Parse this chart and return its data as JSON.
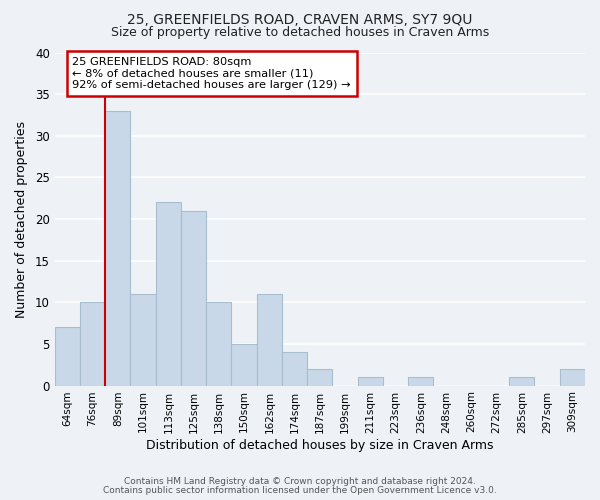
{
  "title1": "25, GREENFIELDS ROAD, CRAVEN ARMS, SY7 9QU",
  "title2": "Size of property relative to detached houses in Craven Arms",
  "xlabel": "Distribution of detached houses by size in Craven Arms",
  "ylabel": "Number of detached properties",
  "bin_labels": [
    "64sqm",
    "76sqm",
    "89sqm",
    "101sqm",
    "113sqm",
    "125sqm",
    "138sqm",
    "150sqm",
    "162sqm",
    "174sqm",
    "187sqm",
    "199sqm",
    "211sqm",
    "223sqm",
    "236sqm",
    "248sqm",
    "260sqm",
    "272sqm",
    "285sqm",
    "297sqm",
    "309sqm"
  ],
  "bar_values": [
    7,
    10,
    33,
    11,
    22,
    21,
    10,
    5,
    11,
    4,
    2,
    0,
    1,
    0,
    1,
    0,
    0,
    0,
    1,
    0,
    2
  ],
  "bar_color": "#c8d8e8",
  "bar_edge_color": "#a8bece",
  "vline_x": 1.5,
  "vline_color": "#cc0000",
  "annotation_line1": "25 GREENFIELDS ROAD: 80sqm",
  "annotation_line2": "← 8% of detached houses are smaller (11)",
  "annotation_line3": "92% of semi-detached houses are larger (129) →",
  "annotation_box_color": "#ffffff",
  "annotation_box_edge": "#cc0000",
  "ylim": [
    0,
    40
  ],
  "yticks": [
    0,
    5,
    10,
    15,
    20,
    25,
    30,
    35,
    40
  ],
  "footer1": "Contains HM Land Registry data © Crown copyright and database right 2024.",
  "footer2": "Contains public sector information licensed under the Open Government Licence v3.0.",
  "background_color": "#eef2f7",
  "grid_color": "#ffffff",
  "title_fontsize": 10,
  "subtitle_fontsize": 9
}
